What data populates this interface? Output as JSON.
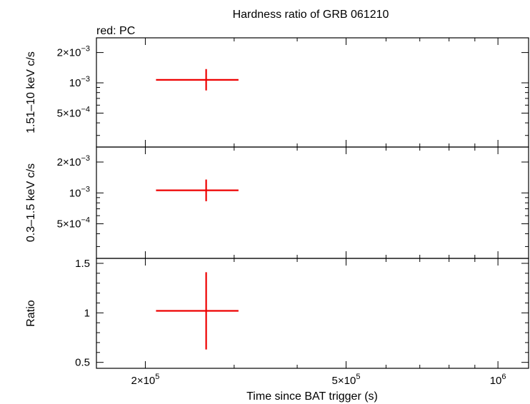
{
  "chart_data": {
    "type": "scatter",
    "title": "Hardness ratio of GRB 061210",
    "note": "red: PC",
    "xlabel": "Time since BAT trigger (s)",
    "xscale": "log",
    "xlim": [
      160000,
      1150000
    ],
    "x_ticks": [
      {
        "value": 200000,
        "mantissa": "2×10",
        "exp": "5"
      },
      {
        "value": 500000,
        "mantissa": "5×10",
        "exp": "5"
      },
      {
        "value": 1000000,
        "mantissa": "10",
        "exp": "6"
      }
    ],
    "panels": [
      {
        "ylabel": "1.51–10 keV c/s",
        "yscale": "log",
        "ylim": [
          0.00023,
          0.0028
        ],
        "y_ticks": [
          {
            "value": 0.002,
            "mantissa": "2×10",
            "exp": "−3"
          },
          {
            "value": 0.001,
            "mantissa": "10",
            "exp": "−3"
          },
          {
            "value": 0.0005,
            "mantissa": "5×10",
            "exp": "−4"
          }
        ],
        "series": [
          {
            "color": "#ee0000",
            "points": [
              {
                "x": 264000,
                "xlo": 210000,
                "xhi": 306000,
                "y": 0.00107,
                "ylo": 0.00084,
                "yhi": 0.00137
              }
            ]
          }
        ]
      },
      {
        "ylabel": "0.3–1.5 keV c/s",
        "yscale": "log",
        "ylim": [
          0.00023,
          0.0028
        ],
        "y_ticks": [
          {
            "value": 0.002,
            "mantissa": "2×10",
            "exp": "−3"
          },
          {
            "value": 0.001,
            "mantissa": "10",
            "exp": "−3"
          },
          {
            "value": 0.0005,
            "mantissa": "5×10",
            "exp": "−4"
          }
        ],
        "series": [
          {
            "color": "#ee0000",
            "points": [
              {
                "x": 264000,
                "xlo": 210000,
                "xhi": 306000,
                "y": 0.00106,
                "ylo": 0.00083,
                "yhi": 0.00135
              }
            ]
          }
        ]
      },
      {
        "ylabel": "Ratio",
        "yscale": "linear",
        "ylim": [
          0.44,
          1.55
        ],
        "y_ticks": [
          {
            "value": 1.5,
            "text": "1.5"
          },
          {
            "value": 1,
            "text": "1"
          },
          {
            "value": 0.5,
            "text": "0.5"
          }
        ],
        "series": [
          {
            "color": "#ee0000",
            "points": [
              {
                "x": 264000,
                "xlo": 210000,
                "xhi": 306000,
                "y": 1.02,
                "ylo": 0.63,
                "yhi": 1.41
              }
            ]
          }
        ]
      }
    ]
  }
}
